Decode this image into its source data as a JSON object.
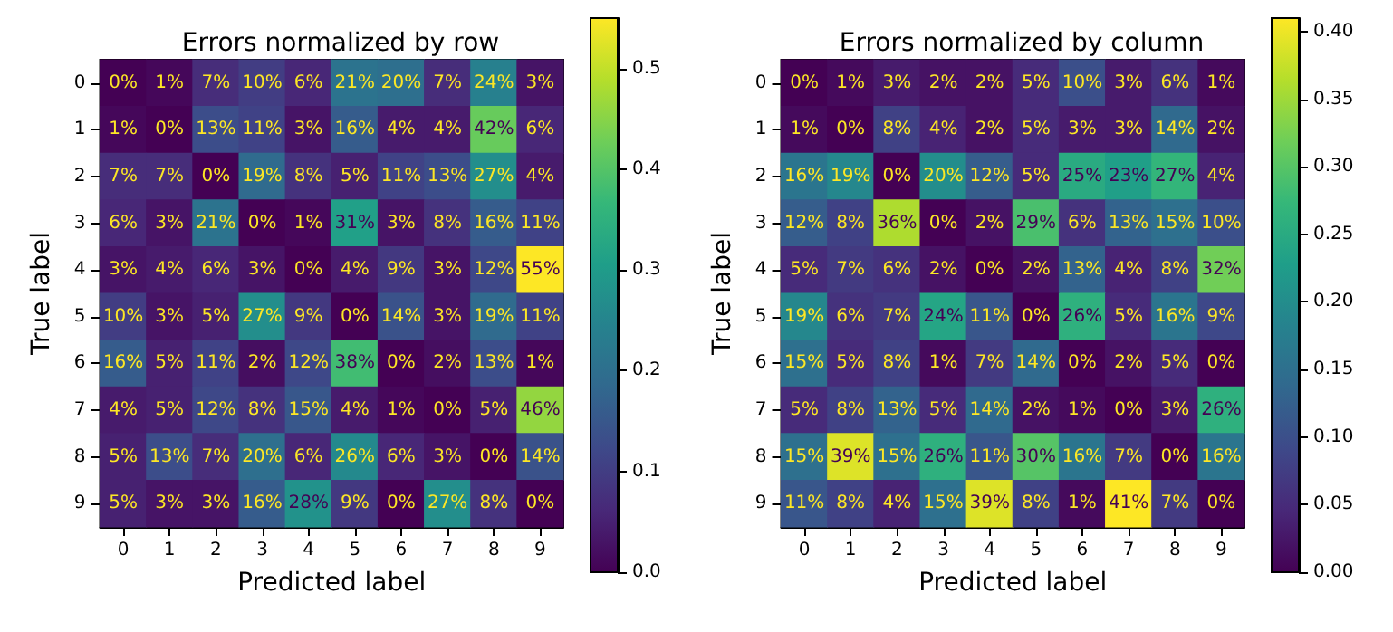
{
  "chart_data": [
    {
      "type": "heatmap",
      "title": "Errors normalized by row",
      "xlabel": "Predicted label",
      "ylabel": "True label",
      "categories": [
        "0",
        "1",
        "2",
        "3",
        "4",
        "5",
        "6",
        "7",
        "8",
        "9"
      ],
      "y_categories": [
        "0",
        "1",
        "2",
        "3",
        "4",
        "5",
        "6",
        "7",
        "8",
        "9"
      ],
      "cells": [
        [
          0,
          0.01,
          0.07,
          0.1,
          0.06,
          0.21,
          0.2,
          0.07,
          0.24,
          0.03
        ],
        [
          0.01,
          0,
          0.13,
          0.11,
          0.03,
          0.16,
          0.04,
          0.04,
          0.42,
          0.06
        ],
        [
          0.07,
          0.07,
          0,
          0.19,
          0.08,
          0.05,
          0.11,
          0.13,
          0.27,
          0.04
        ],
        [
          0.06,
          0.03,
          0.21,
          0,
          0.01,
          0.31,
          0.03,
          0.08,
          0.16,
          0.11
        ],
        [
          0.03,
          0.04,
          0.06,
          0.03,
          0,
          0.04,
          0.09,
          0.03,
          0.12,
          0.55
        ],
        [
          0.1,
          0.03,
          0.05,
          0.27,
          0.09,
          0,
          0.14,
          0.03,
          0.19,
          0.11
        ],
        [
          0.16,
          0.05,
          0.11,
          0.02,
          0.12,
          0.38,
          0,
          0.02,
          0.13,
          0.01
        ],
        [
          0.04,
          0.05,
          0.12,
          0.08,
          0.15,
          0.04,
          0.01,
          0,
          0.05,
          0.46
        ],
        [
          0.05,
          0.13,
          0.07,
          0.2,
          0.06,
          0.26,
          0.06,
          0.03,
          0,
          0.14
        ],
        [
          0.05,
          0.03,
          0.03,
          0.16,
          0.28,
          0.09,
          0,
          0.27,
          0.08,
          0
        ]
      ],
      "cell_labels": [
        [
          "0%",
          "1%",
          "7%",
          "10%",
          "6%",
          "21%",
          "20%",
          "7%",
          "24%",
          "3%"
        ],
        [
          "1%",
          "0%",
          "13%",
          "11%",
          "3%",
          "16%",
          "4%",
          "4%",
          "42%",
          "6%"
        ],
        [
          "7%",
          "7%",
          "0%",
          "19%",
          "8%",
          "5%",
          "11%",
          "13%",
          "27%",
          "4%"
        ],
        [
          "6%",
          "3%",
          "21%",
          "0%",
          "1%",
          "31%",
          "3%",
          "8%",
          "16%",
          "11%"
        ],
        [
          "3%",
          "4%",
          "6%",
          "3%",
          "0%",
          "4%",
          "9%",
          "3%",
          "12%",
          "55%"
        ],
        [
          "10%",
          "3%",
          "5%",
          "27%",
          "9%",
          "0%",
          "14%",
          "3%",
          "19%",
          "11%"
        ],
        [
          "16%",
          "5%",
          "11%",
          "2%",
          "12%",
          "38%",
          "0%",
          "2%",
          "13%",
          "1%"
        ],
        [
          "4%",
          "5%",
          "12%",
          "8%",
          "15%",
          "4%",
          "1%",
          "0%",
          "5%",
          "46%"
        ],
        [
          "5%",
          "13%",
          "7%",
          "20%",
          "6%",
          "26%",
          "6%",
          "3%",
          "0%",
          "14%"
        ],
        [
          "5%",
          "3%",
          "3%",
          "16%",
          "28%",
          "9%",
          "0%",
          "27%",
          "8%",
          "0%"
        ]
      ],
      "clim": [
        0,
        0.55
      ],
      "cticks": [
        {
          "value": 0,
          "label": "0.0"
        },
        {
          "value": 0.1,
          "label": "0.1"
        },
        {
          "value": 0.2,
          "label": "0.2"
        },
        {
          "value": 0.3,
          "label": "0.3"
        },
        {
          "value": 0.4,
          "label": "0.4"
        },
        {
          "value": 0.5,
          "label": "0.5"
        }
      ]
    },
    {
      "type": "heatmap",
      "title": "Errors normalized by column",
      "xlabel": "Predicted label",
      "ylabel": "True label",
      "categories": [
        "0",
        "1",
        "2",
        "3",
        "4",
        "5",
        "6",
        "7",
        "8",
        "9"
      ],
      "y_categories": [
        "0",
        "1",
        "2",
        "3",
        "4",
        "5",
        "6",
        "7",
        "8",
        "9"
      ],
      "cells": [
        [
          0,
          0.01,
          0.03,
          0.02,
          0.02,
          0.05,
          0.1,
          0.03,
          0.06,
          0.01
        ],
        [
          0.01,
          0,
          0.08,
          0.04,
          0.02,
          0.05,
          0.03,
          0.03,
          0.14,
          0.02
        ],
        [
          0.16,
          0.19,
          0,
          0.2,
          0.12,
          0.05,
          0.25,
          0.23,
          0.27,
          0.04
        ],
        [
          0.12,
          0.08,
          0.36,
          0,
          0.02,
          0.29,
          0.06,
          0.13,
          0.15,
          0.1
        ],
        [
          0.05,
          0.07,
          0.06,
          0.02,
          0,
          0.02,
          0.13,
          0.04,
          0.08,
          0.32
        ],
        [
          0.19,
          0.06,
          0.07,
          0.24,
          0.11,
          0,
          0.26,
          0.05,
          0.16,
          0.09
        ],
        [
          0.15,
          0.05,
          0.08,
          0.01,
          0.07,
          0.14,
          0,
          0.02,
          0.05,
          0
        ],
        [
          0.05,
          0.08,
          0.13,
          0.05,
          0.14,
          0.02,
          0.01,
          0,
          0.03,
          0.26
        ],
        [
          0.15,
          0.39,
          0.15,
          0.26,
          0.11,
          0.3,
          0.16,
          0.07,
          0,
          0.16
        ],
        [
          0.11,
          0.08,
          0.04,
          0.15,
          0.39,
          0.08,
          0.01,
          0.41,
          0.07,
          0
        ]
      ],
      "cell_labels": [
        [
          "0%",
          "1%",
          "3%",
          "2%",
          "2%",
          "5%",
          "10%",
          "3%",
          "6%",
          "1%"
        ],
        [
          "1%",
          "0%",
          "8%",
          "4%",
          "2%",
          "5%",
          "3%",
          "3%",
          "14%",
          "2%"
        ],
        [
          "16%",
          "19%",
          "0%",
          "20%",
          "12%",
          "5%",
          "25%",
          "23%",
          "27%",
          "4%"
        ],
        [
          "12%",
          "8%",
          "36%",
          "0%",
          "2%",
          "29%",
          "6%",
          "13%",
          "15%",
          "10%"
        ],
        [
          "5%",
          "7%",
          "6%",
          "2%",
          "0%",
          "2%",
          "13%",
          "4%",
          "8%",
          "32%"
        ],
        [
          "19%",
          "6%",
          "7%",
          "24%",
          "11%",
          "0%",
          "26%",
          "5%",
          "16%",
          "9%"
        ],
        [
          "15%",
          "5%",
          "8%",
          "1%",
          "7%",
          "14%",
          "0%",
          "2%",
          "5%",
          "0%"
        ],
        [
          "5%",
          "8%",
          "13%",
          "5%",
          "14%",
          "2%",
          "1%",
          "0%",
          "3%",
          "26%"
        ],
        [
          "15%",
          "39%",
          "15%",
          "26%",
          "11%",
          "30%",
          "16%",
          "7%",
          "0%",
          "16%"
        ],
        [
          "11%",
          "8%",
          "4%",
          "15%",
          "39%",
          "8%",
          "1%",
          "41%",
          "7%",
          "0%"
        ]
      ],
      "clim": [
        0,
        0.41
      ],
      "cticks": [
        {
          "value": 0,
          "label": "0.00"
        },
        {
          "value": 0.05,
          "label": "0.05"
        },
        {
          "value": 0.1,
          "label": "0.10"
        },
        {
          "value": 0.15,
          "label": "0.15"
        },
        {
          "value": 0.2,
          "label": "0.20"
        },
        {
          "value": 0.25,
          "label": "0.25"
        },
        {
          "value": 0.3,
          "label": "0.30"
        },
        {
          "value": 0.35,
          "label": "0.35"
        },
        {
          "value": 0.4,
          "label": "0.40"
        }
      ]
    }
  ]
}
